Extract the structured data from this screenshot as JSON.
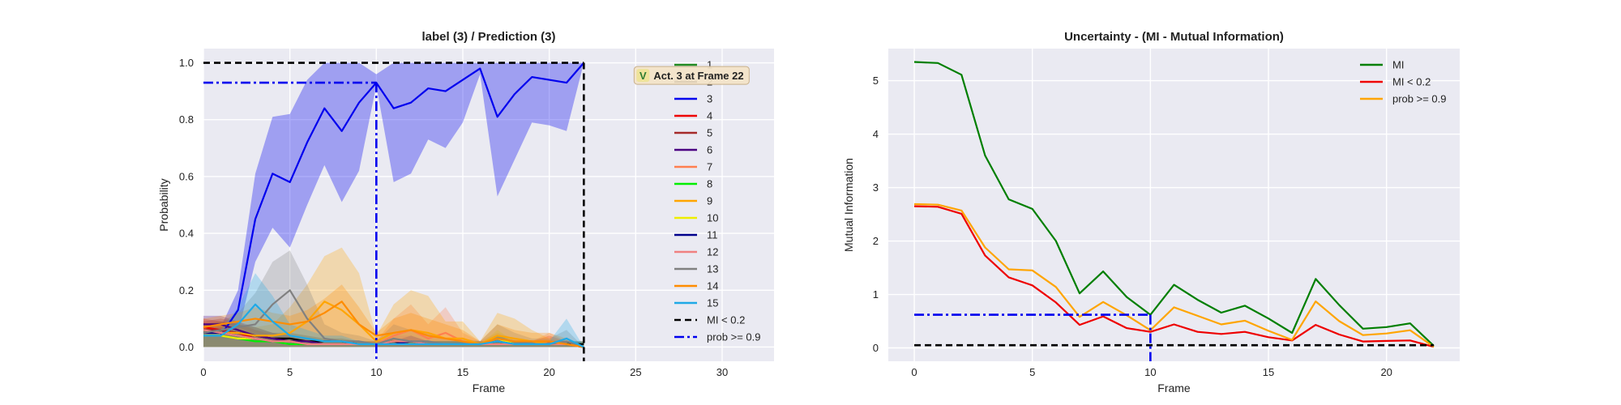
{
  "chart_data": [
    {
      "type": "line",
      "title": "label (3) / Prediction (3)",
      "xlabel": "Frame",
      "ylabel": "Probability",
      "xlim": [
        0,
        33
      ],
      "ylim": [
        -0.05,
        1.05
      ],
      "xticks": [
        0,
        5,
        10,
        15,
        20,
        25,
        30
      ],
      "yticks": [
        0.0,
        0.2,
        0.4,
        0.6,
        0.8,
        1.0
      ],
      "grid": true,
      "legend_position": "top-right",
      "annotation": {
        "text": "Act. 3 at Frame 22",
        "badge": "V",
        "x": 22,
        "y": 0.95,
        "badge_color": "#2e7d32"
      },
      "x": [
        0,
        1,
        2,
        3,
        4,
        5,
        6,
        7,
        8,
        9,
        10,
        11,
        12,
        13,
        14,
        15,
        16,
        17,
        18,
        19,
        20,
        21,
        22
      ],
      "series": [
        {
          "name": "1",
          "color": "#228b22",
          "values": [
            0.06,
            0.05,
            0.04,
            0.03,
            0.02,
            0.02,
            0.01,
            0.01,
            0.01,
            0.01,
            0.01,
            0.01,
            0.01,
            0.01,
            0.01,
            0.01,
            0.01,
            0.01,
            0.01,
            0.01,
            0.01,
            0.01,
            0.01
          ],
          "upper": [
            0.08,
            0.07,
            0.06,
            0.05,
            0.04,
            0.03,
            0.02,
            0.02,
            0.02,
            0.02,
            0.02,
            0.02,
            0.02,
            0.02,
            0.02,
            0.02,
            0.02,
            0.02,
            0.02,
            0.02,
            0.02,
            0.02,
            0.02
          ]
        },
        {
          "name": "2",
          "color": "#000000",
          "values": [
            0.05,
            0.06,
            0.05,
            0.04,
            0.03,
            0.03,
            0.02,
            0.02,
            0.02,
            0.01,
            0.01,
            0.02,
            0.01,
            0.01,
            0.01,
            0.01,
            0.01,
            0.01,
            0.01,
            0.01,
            0.01,
            0.01,
            0.01
          ],
          "upper": [
            0.08,
            0.09,
            0.08,
            0.07,
            0.05,
            0.05,
            0.04,
            0.03,
            0.03,
            0.02,
            0.02,
            0.03,
            0.02,
            0.02,
            0.02,
            0.02,
            0.02,
            0.02,
            0.02,
            0.02,
            0.02,
            0.02,
            0.02
          ]
        },
        {
          "name": "3",
          "color": "#0000ee",
          "values": [
            0.04,
            0.04,
            0.13,
            0.45,
            0.61,
            0.58,
            0.72,
            0.84,
            0.76,
            0.86,
            0.93,
            0.84,
            0.86,
            0.91,
            0.9,
            0.94,
            0.98,
            0.81,
            0.89,
            0.95,
            0.94,
            0.93,
            1.0
          ],
          "lower": [
            0.02,
            0.02,
            0.05,
            0.3,
            0.42,
            0.35,
            0.5,
            0.64,
            0.51,
            0.62,
            0.92,
            0.58,
            0.61,
            0.73,
            0.7,
            0.79,
            0.96,
            0.53,
            0.66,
            0.79,
            0.78,
            0.76,
            1.0
          ],
          "upper": [
            0.07,
            0.07,
            0.2,
            0.61,
            0.81,
            0.82,
            0.94,
            1.0,
            1.0,
            1.0,
            0.96,
            1.0,
            1.0,
            1.0,
            1.0,
            1.0,
            1.0,
            1.0,
            1.0,
            1.0,
            1.0,
            1.0,
            1.0
          ]
        },
        {
          "name": "4",
          "color": "#ee0000",
          "values": [
            0.07,
            0.06,
            0.05,
            0.03,
            0.02,
            0.02,
            0.01,
            0.01,
            0.01,
            0.01,
            0.01,
            0.01,
            0.01,
            0.01,
            0.01,
            0.01,
            0.01,
            0.01,
            0.01,
            0.01,
            0.02,
            0.01,
            0.0
          ],
          "upper": [
            0.1,
            0.09,
            0.08,
            0.06,
            0.04,
            0.03,
            0.02,
            0.02,
            0.02,
            0.02,
            0.01,
            0.02,
            0.02,
            0.02,
            0.02,
            0.02,
            0.01,
            0.02,
            0.02,
            0.02,
            0.04,
            0.02,
            0.0
          ]
        },
        {
          "name": "5",
          "color": "#a52a2a",
          "values": [
            0.06,
            0.06,
            0.05,
            0.04,
            0.03,
            0.02,
            0.02,
            0.01,
            0.01,
            0.01,
            0.01,
            0.01,
            0.01,
            0.01,
            0.01,
            0.01,
            0.01,
            0.01,
            0.01,
            0.01,
            0.01,
            0.01,
            0.0
          ],
          "upper": [
            0.09,
            0.1,
            0.09,
            0.06,
            0.05,
            0.04,
            0.03,
            0.02,
            0.02,
            0.02,
            0.01,
            0.02,
            0.02,
            0.02,
            0.02,
            0.02,
            0.01,
            0.02,
            0.02,
            0.02,
            0.02,
            0.02,
            0.0
          ]
        },
        {
          "name": "6",
          "color": "#4b0082",
          "values": [
            0.08,
            0.08,
            0.06,
            0.04,
            0.03,
            0.02,
            0.02,
            0.01,
            0.01,
            0.01,
            0.01,
            0.01,
            0.01,
            0.01,
            0.01,
            0.01,
            0.01,
            0.01,
            0.01,
            0.01,
            0.01,
            0.01,
            0.0
          ],
          "upper": [
            0.11,
            0.11,
            0.09,
            0.07,
            0.05,
            0.04,
            0.03,
            0.02,
            0.02,
            0.02,
            0.01,
            0.02,
            0.02,
            0.02,
            0.02,
            0.02,
            0.01,
            0.02,
            0.02,
            0.02,
            0.02,
            0.02,
            0.0
          ]
        },
        {
          "name": "7",
          "color": "#ff7f50",
          "values": [
            0.05,
            0.05,
            0.04,
            0.03,
            0.02,
            0.02,
            0.01,
            0.01,
            0.01,
            0.01,
            0.01,
            0.04,
            0.06,
            0.03,
            0.05,
            0.02,
            0.01,
            0.02,
            0.01,
            0.01,
            0.02,
            0.01,
            0.0
          ],
          "upper": [
            0.08,
            0.08,
            0.07,
            0.05,
            0.04,
            0.03,
            0.02,
            0.02,
            0.02,
            0.02,
            0.02,
            0.1,
            0.15,
            0.08,
            0.14,
            0.05,
            0.02,
            0.05,
            0.03,
            0.02,
            0.05,
            0.02,
            0.0
          ]
        },
        {
          "name": "8",
          "color": "#00ee00",
          "values": [
            0.04,
            0.04,
            0.03,
            0.02,
            0.02,
            0.01,
            0.01,
            0.01,
            0.01,
            0.01,
            0.01,
            0.01,
            0.01,
            0.01,
            0.01,
            0.01,
            0.01,
            0.01,
            0.01,
            0.01,
            0.01,
            0.01,
            0.0
          ],
          "upper": [
            0.06,
            0.06,
            0.05,
            0.04,
            0.03,
            0.02,
            0.02,
            0.02,
            0.02,
            0.02,
            0.01,
            0.02,
            0.02,
            0.02,
            0.02,
            0.02,
            0.01,
            0.02,
            0.02,
            0.02,
            0.02,
            0.02,
            0.0
          ]
        },
        {
          "name": "9",
          "color": "#ffa500",
          "values": [
            0.05,
            0.05,
            0.05,
            0.04,
            0.04,
            0.05,
            0.09,
            0.16,
            0.13,
            0.08,
            0.02,
            0.05,
            0.06,
            0.05,
            0.03,
            0.03,
            0.01,
            0.04,
            0.03,
            0.02,
            0.01,
            0.01,
            0.0
          ],
          "upper": [
            0.08,
            0.08,
            0.08,
            0.07,
            0.08,
            0.14,
            0.22,
            0.32,
            0.35,
            0.26,
            0.04,
            0.15,
            0.2,
            0.18,
            0.09,
            0.09,
            0.02,
            0.12,
            0.1,
            0.06,
            0.03,
            0.02,
            0.0
          ]
        },
        {
          "name": "10",
          "color": "#eeee00",
          "values": [
            0.04,
            0.04,
            0.03,
            0.03,
            0.02,
            0.02,
            0.01,
            0.01,
            0.01,
            0.01,
            0.01,
            0.01,
            0.01,
            0.01,
            0.01,
            0.01,
            0.01,
            0.03,
            0.01,
            0.01,
            0.01,
            0.01,
            0.0
          ],
          "upper": [
            0.06,
            0.06,
            0.05,
            0.05,
            0.04,
            0.03,
            0.02,
            0.02,
            0.02,
            0.02,
            0.01,
            0.02,
            0.02,
            0.02,
            0.02,
            0.02,
            0.01,
            0.06,
            0.02,
            0.02,
            0.02,
            0.02,
            0.0
          ]
        },
        {
          "name": "11",
          "color": "#00008b",
          "values": [
            0.05,
            0.05,
            0.04,
            0.03,
            0.02,
            0.02,
            0.01,
            0.01,
            0.01,
            0.01,
            0.01,
            0.01,
            0.02,
            0.01,
            0.01,
            0.01,
            0.01,
            0.02,
            0.01,
            0.01,
            0.01,
            0.01,
            0.0
          ],
          "upper": [
            0.07,
            0.07,
            0.06,
            0.05,
            0.04,
            0.03,
            0.02,
            0.02,
            0.02,
            0.02,
            0.01,
            0.02,
            0.04,
            0.02,
            0.02,
            0.02,
            0.01,
            0.04,
            0.02,
            0.02,
            0.02,
            0.02,
            0.0
          ]
        },
        {
          "name": "12",
          "color": "#f08080",
          "values": [
            0.06,
            0.05,
            0.04,
            0.03,
            0.02,
            0.02,
            0.01,
            0.01,
            0.01,
            0.01,
            0.01,
            0.02,
            0.02,
            0.01,
            0.01,
            0.01,
            0.01,
            0.01,
            0.01,
            0.01,
            0.01,
            0.01,
            0.0
          ],
          "upper": [
            0.08,
            0.07,
            0.06,
            0.05,
            0.04,
            0.03,
            0.02,
            0.02,
            0.02,
            0.02,
            0.01,
            0.04,
            0.04,
            0.02,
            0.02,
            0.02,
            0.01,
            0.02,
            0.02,
            0.02,
            0.02,
            0.02,
            0.0
          ]
        },
        {
          "name": "13",
          "color": "#808080",
          "values": [
            0.05,
            0.06,
            0.07,
            0.08,
            0.15,
            0.2,
            0.1,
            0.03,
            0.02,
            0.02,
            0.01,
            0.03,
            0.02,
            0.02,
            0.01,
            0.01,
            0.01,
            0.03,
            0.02,
            0.01,
            0.01,
            0.02,
            0.0
          ],
          "upper": [
            0.08,
            0.09,
            0.12,
            0.19,
            0.3,
            0.34,
            0.22,
            0.08,
            0.05,
            0.04,
            0.02,
            0.08,
            0.06,
            0.05,
            0.03,
            0.03,
            0.02,
            0.08,
            0.05,
            0.03,
            0.03,
            0.06,
            0.0
          ]
        },
        {
          "name": "14",
          "color": "#ff8c00",
          "values": [
            0.07,
            0.08,
            0.09,
            0.1,
            0.09,
            0.08,
            0.09,
            0.12,
            0.16,
            0.08,
            0.04,
            0.05,
            0.06,
            0.04,
            0.03,
            0.02,
            0.01,
            0.03,
            0.02,
            0.02,
            0.02,
            0.01,
            0.0
          ],
          "upper": [
            0.1,
            0.11,
            0.12,
            0.14,
            0.12,
            0.11,
            0.13,
            0.17,
            0.22,
            0.14,
            0.05,
            0.1,
            0.12,
            0.1,
            0.08,
            0.06,
            0.02,
            0.08,
            0.06,
            0.05,
            0.05,
            0.03,
            0.0
          ]
        },
        {
          "name": "15",
          "color": "#1fa9e6",
          "values": [
            0.04,
            0.04,
            0.08,
            0.15,
            0.09,
            0.04,
            0.03,
            0.02,
            0.02,
            0.01,
            0.01,
            0.01,
            0.01,
            0.01,
            0.01,
            0.01,
            0.01,
            0.02,
            0.01,
            0.01,
            0.01,
            0.03,
            0.0
          ],
          "upper": [
            0.06,
            0.06,
            0.14,
            0.26,
            0.18,
            0.08,
            0.06,
            0.04,
            0.04,
            0.02,
            0.01,
            0.02,
            0.02,
            0.02,
            0.02,
            0.02,
            0.01,
            0.04,
            0.02,
            0.02,
            0.02,
            0.1,
            0.0
          ]
        }
      ],
      "reference_lines": [
        {
          "name": "MI < 0.2",
          "style": "dashed",
          "color": "#000000",
          "y": 1.0,
          "x_from": 0,
          "x_to": 22,
          "vertical_x": 22
        },
        {
          "name": "prob >= 0.9",
          "style": "dashdot",
          "color": "#0000ee",
          "y": 0.93,
          "x_from": 0,
          "x_to": 10,
          "vertical_x": 10
        }
      ]
    },
    {
      "type": "line",
      "title": "Uncertainty - (MI - Mutual Information)",
      "xlabel": "Frame",
      "ylabel": "Mutual Information",
      "xlim": [
        -1.1,
        23.1
      ],
      "ylim": [
        -0.25,
        5.6
      ],
      "xticks": [
        0,
        5,
        10,
        15,
        20
      ],
      "yticks": [
        0,
        1,
        2,
        3,
        4,
        5
      ],
      "grid": true,
      "legend_position": "top-right",
      "x": [
        0,
        1,
        2,
        3,
        4,
        5,
        6,
        7,
        8,
        9,
        10,
        11,
        12,
        13,
        14,
        15,
        16,
        17,
        18,
        19,
        20,
        21,
        22
      ],
      "series": [
        {
          "name": "MI",
          "color": "#007f00",
          "values": [
            5.35,
            5.33,
            5.11,
            3.6,
            2.78,
            2.6,
            2.0,
            1.02,
            1.43,
            0.95,
            0.62,
            1.18,
            0.9,
            0.66,
            0.79,
            0.55,
            0.28,
            1.29,
            0.8,
            0.36,
            0.39,
            0.46,
            0.04
          ]
        },
        {
          "name": "MI < 0.2",
          "color": "#ee0000",
          "values": [
            2.65,
            2.64,
            2.51,
            1.73,
            1.32,
            1.17,
            0.85,
            0.43,
            0.59,
            0.37,
            0.3,
            0.44,
            0.3,
            0.26,
            0.3,
            0.2,
            0.14,
            0.43,
            0.25,
            0.12,
            0.13,
            0.14,
            0.02
          ]
        },
        {
          "name": "prob >= 0.9",
          "color": "#ffa500",
          "values": [
            2.69,
            2.68,
            2.57,
            1.88,
            1.47,
            1.45,
            1.14,
            0.58,
            0.86,
            0.61,
            0.33,
            0.76,
            0.6,
            0.44,
            0.51,
            0.32,
            0.15,
            0.87,
            0.5,
            0.24,
            0.27,
            0.33,
            0.02
          ]
        }
      ],
      "reference_lines": [
        {
          "style": "dashed",
          "color": "#000000",
          "y": 0.05,
          "x_from": 0,
          "x_to": 22
        },
        {
          "style": "dashdot",
          "color": "#0000ee",
          "y": 0.62,
          "x_from": 0,
          "x_to": 10,
          "vertical_x": 10
        }
      ]
    }
  ]
}
